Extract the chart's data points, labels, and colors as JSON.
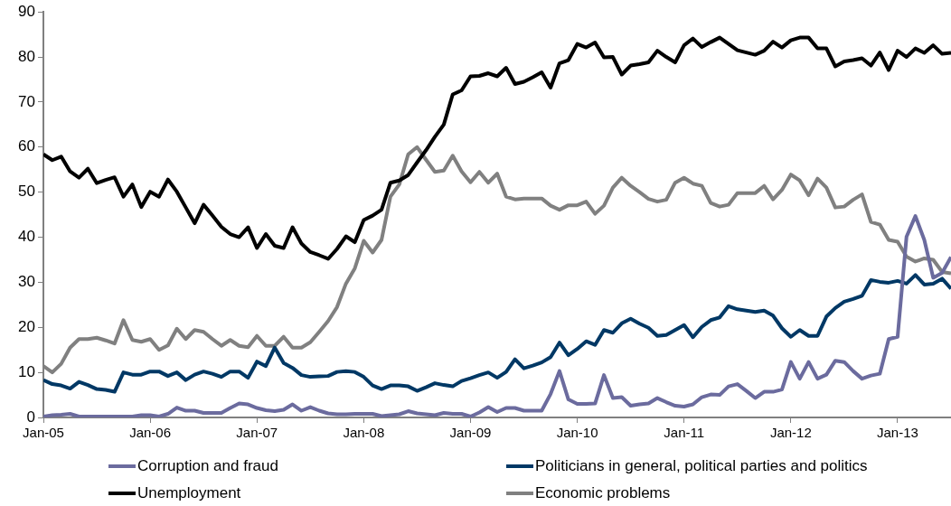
{
  "chart_data": {
    "type": "line",
    "x": [
      "2005-01",
      "2005-02",
      "2005-03",
      "2005-04",
      "2005-05",
      "2005-06",
      "2005-07",
      "2005-08",
      "2005-09",
      "2005-10",
      "2005-11",
      "2005-12",
      "2006-01",
      "2006-02",
      "2006-03",
      "2006-04",
      "2006-05",
      "2006-06",
      "2006-07",
      "2006-08",
      "2006-09",
      "2006-10",
      "2006-11",
      "2006-12",
      "2007-01",
      "2007-02",
      "2007-03",
      "2007-04",
      "2007-05",
      "2007-06",
      "2007-07",
      "2007-08",
      "2007-09",
      "2007-10",
      "2007-11",
      "2007-12",
      "2008-01",
      "2008-02",
      "2008-03",
      "2008-04",
      "2008-05",
      "2008-06",
      "2008-07",
      "2008-08",
      "2008-09",
      "2008-10",
      "2008-11",
      "2008-12",
      "2009-01",
      "2009-02",
      "2009-03",
      "2009-04",
      "2009-05",
      "2009-06",
      "2009-07",
      "2009-08",
      "2009-09",
      "2009-10",
      "2009-11",
      "2009-12",
      "2010-01",
      "2010-02",
      "2010-03",
      "2010-04",
      "2010-05",
      "2010-06",
      "2010-07",
      "2010-08",
      "2010-09",
      "2010-10",
      "2010-11",
      "2010-12",
      "2011-01",
      "2011-02",
      "2011-03",
      "2011-04",
      "2011-05",
      "2011-06",
      "2011-07",
      "2011-08",
      "2011-09",
      "2011-10",
      "2011-11",
      "2011-12",
      "2012-01",
      "2012-02",
      "2012-03",
      "2012-04",
      "2012-05",
      "2012-06",
      "2012-07",
      "2012-08",
      "2012-09",
      "2012-10",
      "2012-11",
      "2012-12",
      "2013-01",
      "2013-02",
      "2013-03",
      "2013-04",
      "2013-05",
      "2013-06",
      "2013-07"
    ],
    "series": [
      {
        "name": "Corruption and fraud",
        "color": "#6b6b9e",
        "values": [
          0.2,
          0.5,
          0.6,
          0.8,
          0.2,
          0.2,
          0.2,
          0.2,
          0.2,
          0.2,
          0.2,
          0.5,
          0.5,
          0.2,
          0.8,
          2.2,
          1.5,
          1.5,
          1.0,
          1.0,
          1.0,
          2.1,
          3.1,
          2.9,
          2.1,
          1.6,
          1.4,
          1.7,
          2.9,
          1.5,
          2.3,
          1.5,
          0.9,
          0.7,
          0.7,
          0.8,
          0.8,
          0.8,
          0.3,
          0.5,
          0.7,
          1.4,
          0.9,
          0.7,
          0.5,
          1.0,
          0.8,
          0.8,
          0.2,
          1.1,
          2.3,
          1.2,
          2.1,
          2.1,
          1.5,
          1.5,
          1.5,
          5.2,
          10.3,
          4.0,
          3.0,
          3.0,
          3.1,
          9.4,
          4.3,
          4.5,
          2.6,
          2.9,
          3.1,
          4.3,
          3.4,
          2.6,
          2.4,
          2.9,
          4.5,
          5.1,
          5.0,
          6.9,
          7.4,
          5.9,
          4.3,
          5.7,
          5.7,
          6.2,
          12.3,
          8.6,
          12.3,
          8.6,
          9.5,
          12.6,
          12.3,
          10.3,
          8.6,
          9.3,
          9.7,
          17.4,
          17.9,
          40.1,
          44.7,
          39.4,
          31.0,
          32.1,
          35.6
        ]
      },
      {
        "name": "Politicians in general, political parties and politics",
        "color": "#003865",
        "values": [
          8.3,
          7.4,
          7.1,
          6.4,
          7.9,
          7.2,
          6.3,
          6.1,
          5.7,
          10.0,
          9.5,
          9.5,
          10.2,
          10.2,
          9.2,
          10.0,
          8.3,
          9.5,
          10.2,
          9.7,
          9.0,
          10.2,
          10.2,
          8.8,
          12.4,
          11.4,
          15.5,
          12.1,
          11.0,
          9.4,
          9.0,
          9.1,
          9.2,
          10.1,
          10.3,
          10.1,
          9.0,
          7.1,
          6.3,
          7.1,
          7.1,
          6.9,
          5.9,
          6.7,
          7.6,
          7.2,
          6.9,
          8.1,
          8.7,
          9.4,
          10.0,
          8.8,
          10.1,
          12.9,
          10.9,
          11.5,
          12.2,
          13.4,
          16.6,
          13.8,
          15.2,
          16.9,
          16.1,
          19.4,
          18.8,
          20.9,
          21.9,
          20.8,
          19.9,
          18.1,
          18.3,
          19.4,
          20.5,
          17.8,
          20.1,
          21.6,
          22.2,
          24.7,
          24.0,
          23.7,
          23.4,
          23.7,
          22.6,
          19.8,
          17.9,
          19.4,
          18.1,
          18.1,
          22.4,
          24.3,
          25.7,
          26.3,
          27.0,
          30.5,
          30.1,
          29.9,
          30.3,
          29.7,
          31.6,
          29.5,
          29.7,
          30.8,
          28.6
        ]
      },
      {
        "name": "Unemployment",
        "color": "#000000",
        "values": [
          58.4,
          57.1,
          57.9,
          54.6,
          53.2,
          55.2,
          52.0,
          52.7,
          53.3,
          49.0,
          51.7,
          46.7,
          50.1,
          49.0,
          52.8,
          50.1,
          46.6,
          43.1,
          47.2,
          44.8,
          42.3,
          40.7,
          40.0,
          42.2,
          37.6,
          40.7,
          38.1,
          37.6,
          42.2,
          38.6,
          36.7,
          36.0,
          35.2,
          37.4,
          40.2,
          38.9,
          43.8,
          44.8,
          46.1,
          52.1,
          52.6,
          53.8,
          56.6,
          59.3,
          62.3,
          65.0,
          71.7,
          72.6,
          75.7,
          75.8,
          76.4,
          75.7,
          77.6,
          74.0,
          74.5,
          75.5,
          76.6,
          73.2,
          78.6,
          79.3,
          82.9,
          82.1,
          83.2,
          79.9,
          80.0,
          76.1,
          78.1,
          78.4,
          78.8,
          81.4,
          80.0,
          78.8,
          82.6,
          84.1,
          82.2,
          83.3,
          84.3,
          82.9,
          81.5,
          81.0,
          80.5,
          81.4,
          83.4,
          82.1,
          83.7,
          84.3,
          84.3,
          81.9,
          81.9,
          77.9,
          79.0,
          79.3,
          79.7,
          78.1,
          81.0,
          77.1,
          81.4,
          80.0,
          81.9,
          80.9,
          82.6,
          80.7,
          80.9
        ]
      },
      {
        "name": "Economic problems",
        "color": "#808080",
        "values": [
          11.4,
          10.0,
          11.9,
          15.5,
          17.4,
          17.4,
          17.7,
          17.1,
          16.4,
          21.6,
          17.2,
          16.8,
          17.4,
          15.0,
          16.0,
          19.7,
          17.4,
          19.4,
          19.0,
          17.4,
          15.9,
          17.2,
          15.9,
          15.6,
          18.1,
          15.9,
          15.9,
          17.9,
          15.5,
          15.5,
          16.7,
          19.0,
          21.4,
          24.5,
          29.7,
          33.1,
          39.2,
          36.6,
          39.4,
          49.0,
          51.7,
          58.4,
          60.0,
          57.2,
          54.5,
          54.8,
          58.1,
          54.6,
          52.2,
          54.5,
          52.1,
          54.1,
          49.0,
          48.4,
          48.6,
          48.6,
          48.6,
          47.0,
          46.1,
          47.1,
          47.1,
          47.9,
          45.2,
          47.0,
          51.0,
          53.2,
          51.4,
          50.0,
          48.5,
          47.9,
          48.3,
          52.1,
          53.2,
          51.9,
          51.4,
          47.6,
          46.8,
          47.2,
          49.8,
          49.8,
          49.8,
          51.4,
          48.4,
          50.5,
          53.9,
          52.6,
          49.3,
          53.0,
          51.0,
          46.6,
          46.8,
          48.3,
          49.5,
          43.4,
          42.8,
          39.4,
          39.0,
          35.7,
          34.6,
          35.3,
          35.0,
          32.3,
          32.0
        ]
      }
    ],
    "xlim": [
      "2005-01",
      "2013-07"
    ],
    "xticks": [
      {
        "value": "2005-01",
        "label": "Jan-05"
      },
      {
        "value": "2006-01",
        "label": "Jan-06"
      },
      {
        "value": "2007-01",
        "label": "Jan-07"
      },
      {
        "value": "2008-01",
        "label": "Jan-08"
      },
      {
        "value": "2009-01",
        "label": "Jan-09"
      },
      {
        "value": "2010-01",
        "label": "Jan-10"
      },
      {
        "value": "2011-01",
        "label": "Jan-11"
      },
      {
        "value": "2012-01",
        "label": "Jan-12"
      },
      {
        "value": "2013-01",
        "label": "Jan-13"
      }
    ],
    "ylim": [
      0,
      90
    ],
    "yticks": [
      0,
      10,
      20,
      30,
      40,
      50,
      60,
      70,
      80,
      90
    ],
    "grid": false,
    "legend": "bottom",
    "marker": "none",
    "line_style": "solid"
  }
}
